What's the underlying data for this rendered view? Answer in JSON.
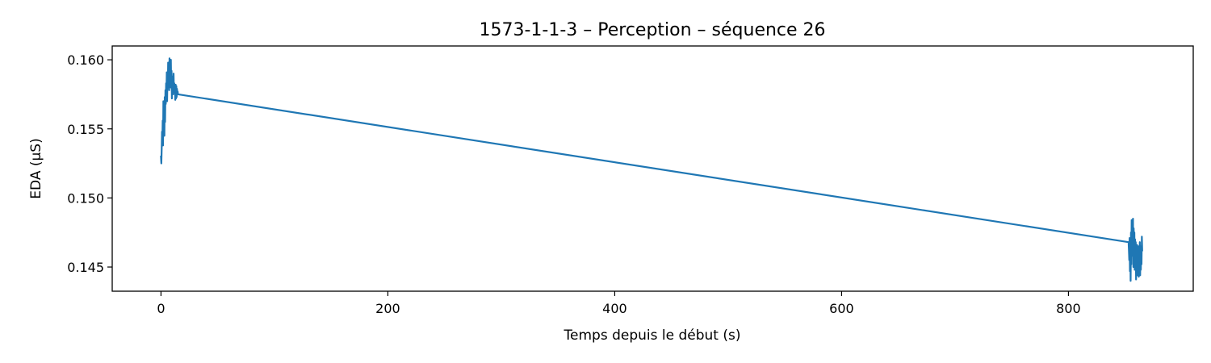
{
  "chart_data": {
    "type": "line",
    "title": "1573-1-1-3 – Perception – séquence 26",
    "xlabel": "Temps depuis le début (s)",
    "ylabel": "EDA (µS)",
    "xlim": [
      -43,
      910
    ],
    "ylim": [
      0.14325,
      0.161
    ],
    "xticks": [
      0,
      200,
      400,
      600,
      800
    ],
    "xtick_labels": [
      "0",
      "200",
      "400",
      "600",
      "800"
    ],
    "yticks": [
      0.145,
      0.15,
      0.155,
      0.16
    ],
    "ytick_labels": [
      "0.145",
      "0.150",
      "0.155",
      "0.160"
    ],
    "grid": false,
    "series": [
      {
        "color": "#1f77b4",
        "x": [
          0,
          0.3,
          0.6,
          0.9,
          1.2,
          1.5,
          1.8,
          2.1,
          2.4,
          2.7,
          3.0,
          3.3,
          3.6,
          3.9,
          4.2,
          4.5,
          4.8,
          5.1,
          5.4,
          5.7,
          6.0,
          6.3,
          6.6,
          6.9,
          7.2,
          7.5,
          7.8,
          8.1,
          8.4,
          8.7,
          9.0,
          9.3,
          9.6,
          9.9,
          10.2,
          10.5,
          10.8,
          11.1,
          11.4,
          11.7,
          12.0,
          12.3,
          12.6,
          12.9,
          13.2,
          13.5,
          13.8,
          14.1,
          14.4,
          14.7,
          15.0,
          853.0,
          853.3,
          853.6,
          853.9,
          854.2,
          854.5,
          854.8,
          855.1,
          855.4,
          855.7,
          856.0,
          856.3,
          856.6,
          856.9,
          857.2,
          857.5,
          857.8,
          858.1,
          858.4,
          858.7,
          859.0,
          859.3,
          859.6,
          859.9,
          860.2,
          860.5,
          860.8,
          861.1,
          861.4,
          861.7,
          862.0,
          862.3,
          862.6,
          862.9,
          863.2,
          863.5,
          863.8,
          864.1,
          864.4,
          864.7,
          865.0
        ],
        "y": [
          0.153,
          0.1525,
          0.1535,
          0.1548,
          0.154,
          0.1556,
          0.1538,
          0.157,
          0.155,
          0.1565,
          0.1545,
          0.1573,
          0.1555,
          0.1578,
          0.1568,
          0.1583,
          0.1575,
          0.1591,
          0.157,
          0.1588,
          0.158,
          0.1598,
          0.1585,
          0.1592,
          0.1578,
          0.1601,
          0.1584,
          0.1594,
          0.158,
          0.16,
          0.1582,
          0.1592,
          0.1572,
          0.1588,
          0.1578,
          0.1585,
          0.1575,
          0.159,
          0.1577,
          0.1583,
          0.1576,
          0.158,
          0.1571,
          0.1582,
          0.1572,
          0.1581,
          0.1573,
          0.1579,
          0.1575,
          0.1577,
          0.1575,
          0.1468,
          0.1462,
          0.1455,
          0.1471,
          0.1447,
          0.1465,
          0.144,
          0.1475,
          0.1452,
          0.1484,
          0.1458,
          0.148,
          0.1462,
          0.1485,
          0.145,
          0.1478,
          0.146,
          0.1475,
          0.1448,
          0.147,
          0.1455,
          0.1468,
          0.1441,
          0.146,
          0.1452,
          0.1466,
          0.1444,
          0.1458,
          0.1449,
          0.1465,
          0.1443,
          0.1459,
          0.1446,
          0.1468,
          0.1444,
          0.1462,
          0.1448,
          0.1465,
          0.1452,
          0.1472,
          0.1462
        ]
      }
    ]
  }
}
